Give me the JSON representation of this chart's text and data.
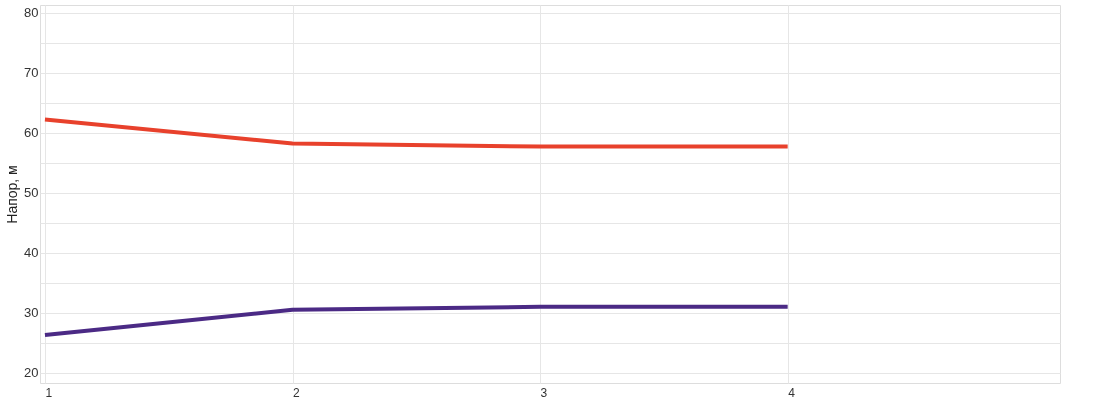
{
  "chart_data": {
    "type": "line",
    "ylabel": "Напор, м",
    "x": [
      1,
      2,
      3,
      4
    ],
    "series": [
      {
        "color": "#e8412c",
        "values": [
          62.2,
          58.2,
          57.7,
          57.7
        ]
      },
      {
        "color": "#4b2a85",
        "values": [
          26.3,
          30.5,
          31,
          31
        ]
      }
    ],
    "xlim": [
      0.98,
      5.1
    ],
    "xticks": [
      1,
      2,
      3,
      4
    ],
    "ylim": [
      18.3,
      81.3
    ],
    "yticks": [
      20,
      {
        "value": 25,
        "label": null
      },
      30,
      {
        "value": 35,
        "label": null
      },
      40,
      {
        "value": 45,
        "label": null
      },
      50,
      {
        "value": 55,
        "label": null
      },
      60,
      {
        "value": 65,
        "label": null
      },
      70,
      {
        "value": 75,
        "label": null
      },
      80
    ],
    "grid": true,
    "marker": "none",
    "line_style": "solid"
  }
}
